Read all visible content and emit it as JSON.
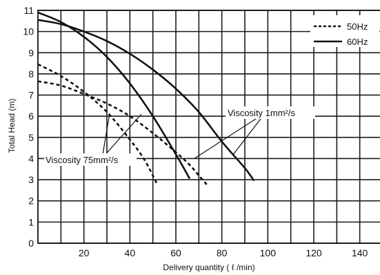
{
  "chart_data": {
    "type": "line",
    "title": "",
    "xlabel": "Delivery quantity ( ℓ /min)",
    "ylabel": "Total Head (m)",
    "xlim": [
      0,
      150
    ],
    "ylim": [
      0,
      11
    ],
    "x_ticks": [
      20,
      40,
      60,
      80,
      100,
      120,
      140
    ],
    "x_tick_labels": [
      "20",
      "40",
      "60",
      "80",
      "100",
      "120",
      "140"
    ],
    "y_ticks": [
      0,
      1,
      2,
      3,
      4,
      5,
      6,
      7,
      8,
      9,
      10,
      11
    ],
    "y_tick_labels": [
      "0",
      "1",
      "2",
      "3",
      "4",
      "5",
      "6",
      "7",
      "8",
      "9",
      "10",
      "11"
    ],
    "grid": true,
    "legend_position": "top-right",
    "legend": [
      {
        "label": "50Hz",
        "style": "dashed"
      },
      {
        "label": "60Hz",
        "style": "solid"
      }
    ],
    "series": [
      {
        "group": "50Hz",
        "viscosity": "Viscosity 75mm²/s",
        "style": "dashed",
        "x": [
          0,
          10,
          20,
          30,
          40,
          46,
          50,
          52
        ],
        "y": [
          8.45,
          7.9,
          7.15,
          6.2,
          4.9,
          4.0,
          3.2,
          2.75
        ]
      },
      {
        "group": "50Hz",
        "viscosity": "Viscosity 1mm²/s",
        "style": "dashed",
        "x": [
          0,
          10,
          20,
          30,
          40,
          50,
          60,
          66,
          70,
          74
        ],
        "y": [
          7.65,
          7.45,
          7.05,
          6.6,
          6.0,
          5.2,
          4.3,
          3.7,
          3.2,
          2.7
        ]
      },
      {
        "group": "60Hz",
        "viscosity": "Viscosity 75mm²/s",
        "style": "solid",
        "x": [
          0,
          10,
          20,
          30,
          40,
          50,
          60,
          66
        ],
        "y": [
          10.9,
          10.45,
          9.75,
          8.8,
          7.55,
          6.0,
          4.2,
          3.05
        ]
      },
      {
        "group": "60Hz",
        "viscosity": "Viscosity 1mm²/s",
        "style": "solid",
        "x": [
          0,
          10,
          20,
          30,
          40,
          50,
          60,
          70,
          80,
          90,
          94
        ],
        "y": [
          10.55,
          10.35,
          10.0,
          9.55,
          8.95,
          8.2,
          7.3,
          6.2,
          4.8,
          3.55,
          2.95
        ]
      }
    ],
    "annotations": [
      {
        "text": "Viscosity 1mm²/s",
        "points_to": [
          [
            68,
            4.0
          ],
          [
            85,
            4.2
          ]
        ]
      },
      {
        "text": "Viscosity 75mm²/s",
        "points_to": [
          [
            31,
            6.0
          ],
          [
            45,
            6.1
          ]
        ]
      }
    ]
  }
}
